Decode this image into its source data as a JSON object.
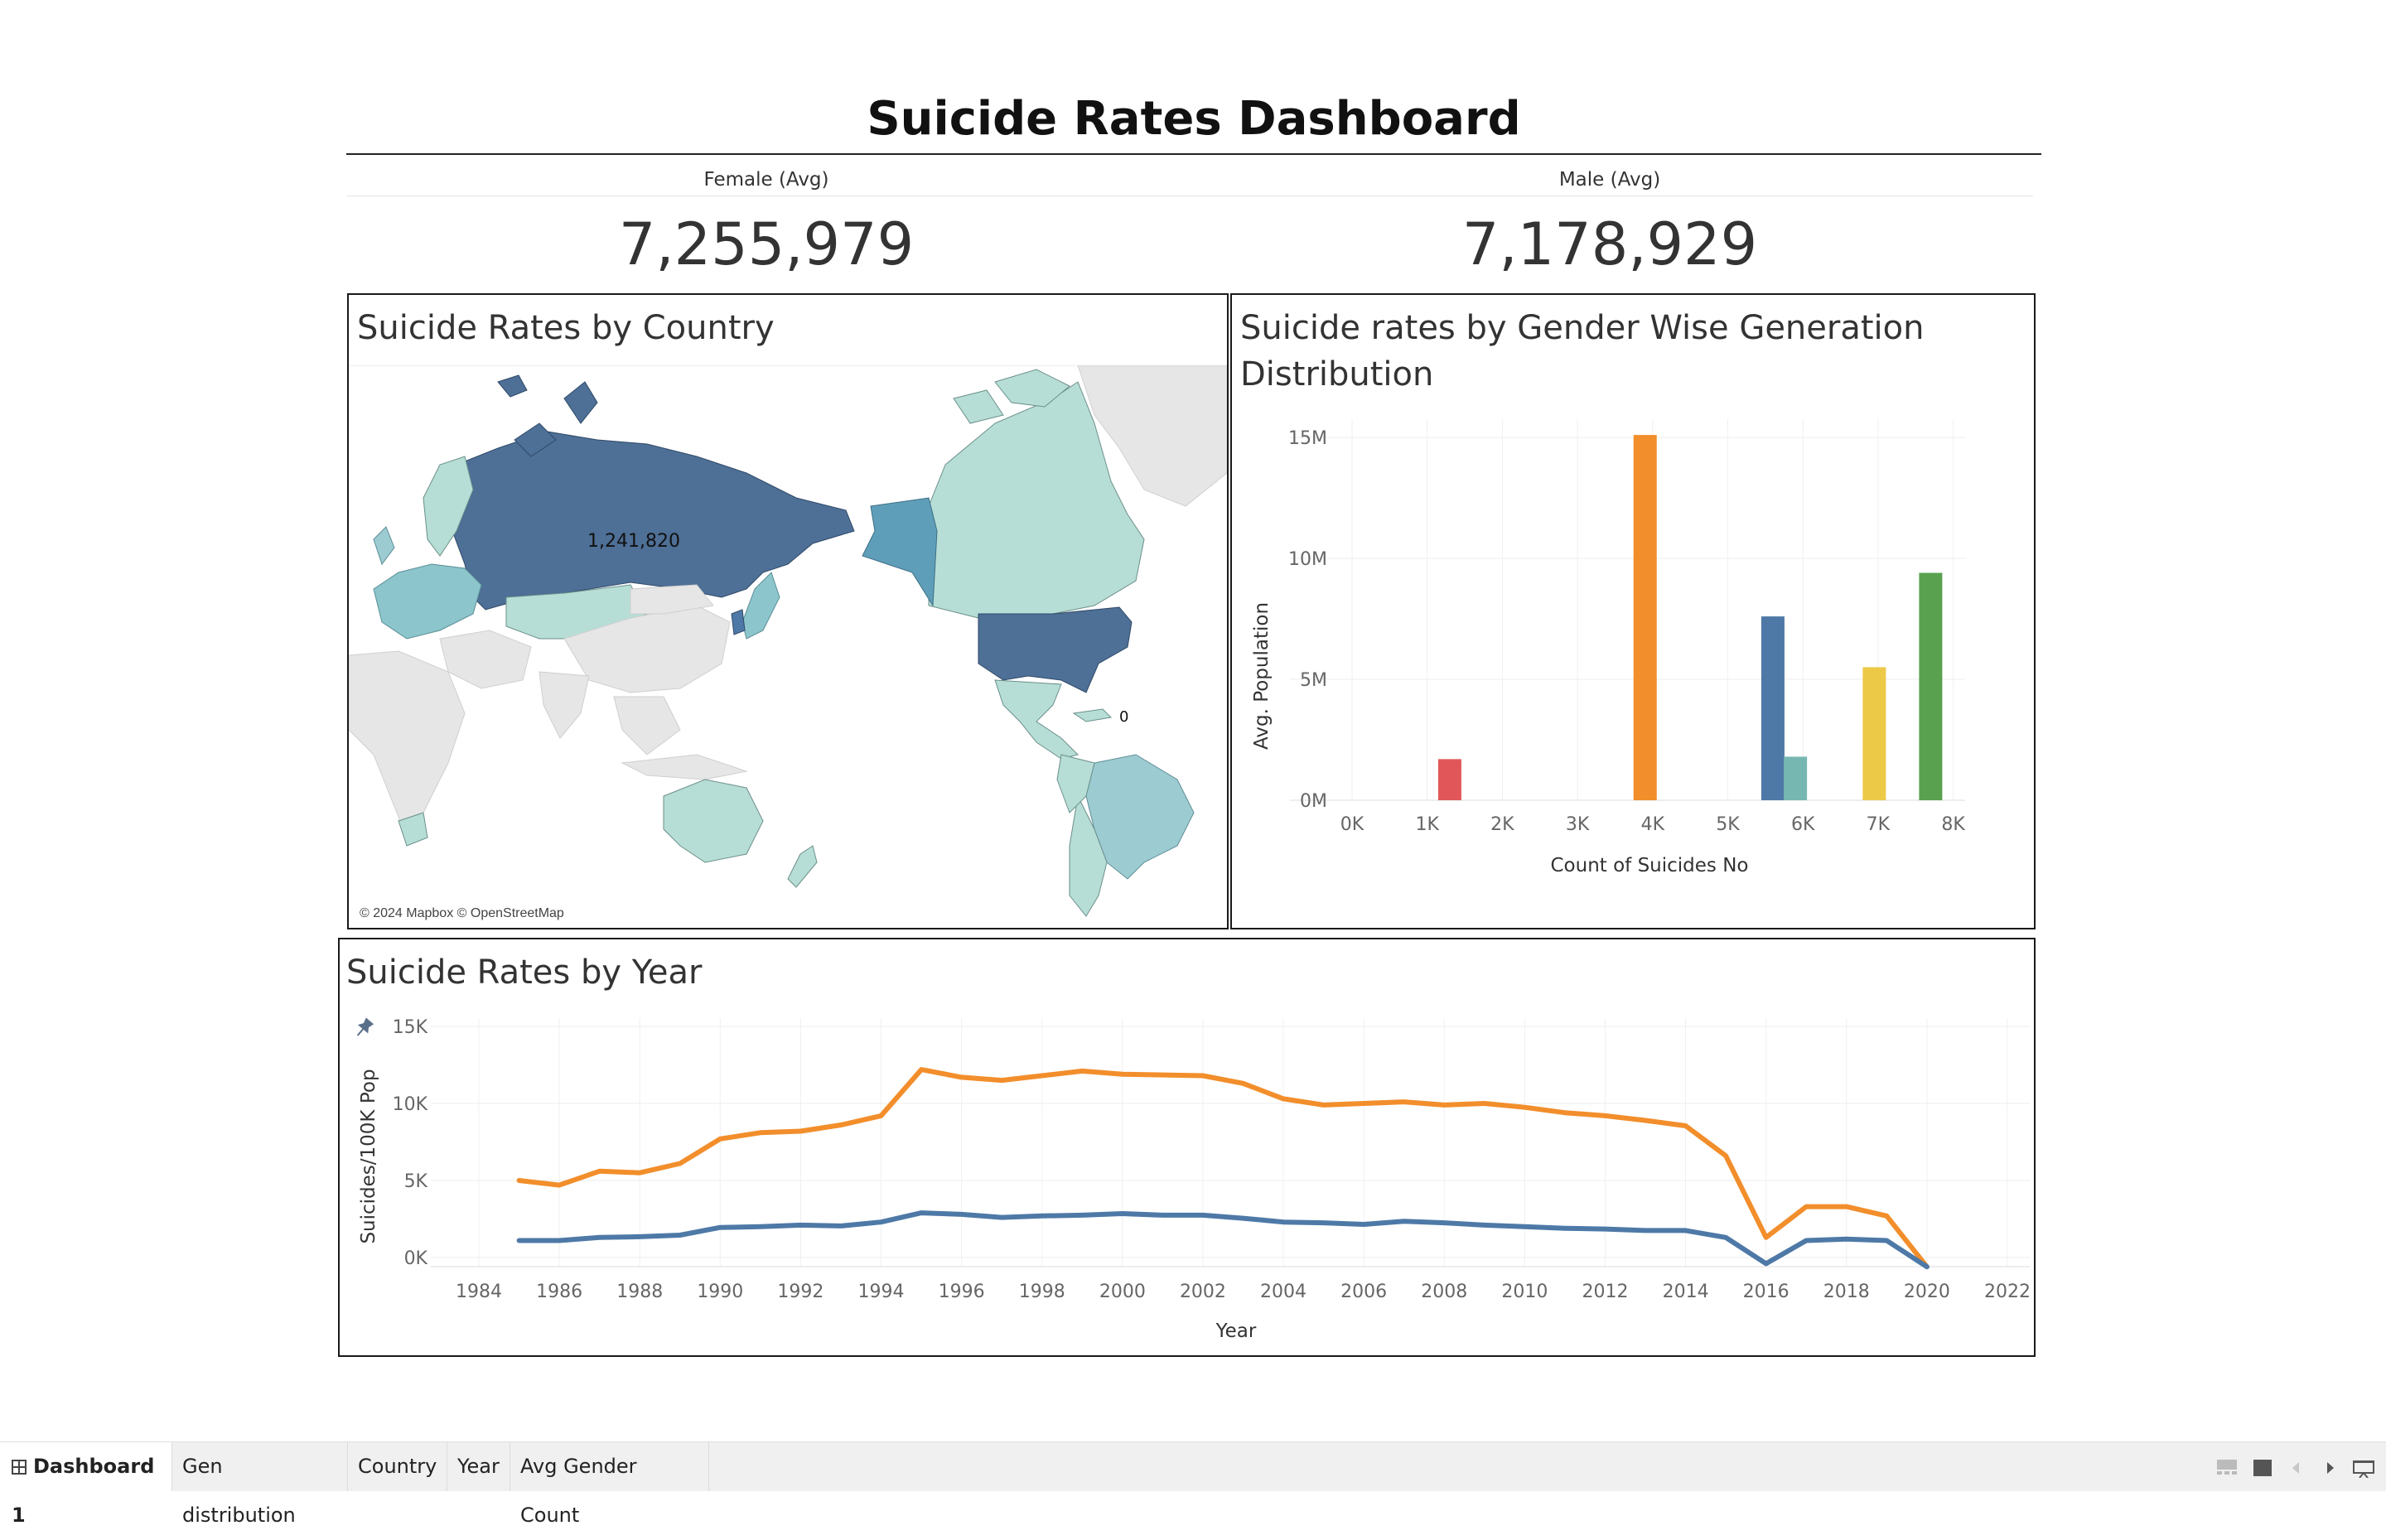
{
  "dashboard": {
    "title": "Suicide Rates Dashboard",
    "female_label": "Female (Avg)",
    "female_value": "7,255,979",
    "male_label": "Male (Avg)",
    "male_value": "7,178,929"
  },
  "map": {
    "title": "Suicide Rates by Country",
    "highlight_label": "1,241,820",
    "credit": "© 2024 Mapbox © OpenStreetMap",
    "colors": {
      "low": "#b7ded6",
      "mid": "#5f9eb8",
      "high": "#4e6f96",
      "nodata": "#e6e6e6",
      "ocean": "#ffffff"
    }
  },
  "tabs": {
    "dashboard1": "Dashboard 1",
    "gen": "Gen distribution",
    "country": "Country",
    "year": "Year",
    "avg": "Avg Gender Count"
  },
  "chart_data": [
    {
      "type": "bar",
      "title": "Suicide rates by Gender Wise Generation Distribution",
      "xlabel": "Count of Suicides No",
      "ylabel": "Avg. Population",
      "x_ticks": [
        "0K",
        "1K",
        "2K",
        "3K",
        "4K",
        "5K",
        "6K",
        "7K",
        "8K"
      ],
      "y_ticks": [
        "0M",
        "5M",
        "10M",
        "15M"
      ],
      "x_range": [
        0,
        8000
      ],
      "ylim": [
        0,
        15000000
      ],
      "grid": true,
      "bars": [
        {
          "x": 1300,
          "value": 1700000,
          "color": "#e15759"
        },
        {
          "x": 3900,
          "value": 15100000,
          "color": "#f28e2b"
        },
        {
          "x": 5600,
          "value": 7600000,
          "color": "#4e79a7"
        },
        {
          "x": 5900,
          "value": 1800000,
          "color": "#76b7b2"
        },
        {
          "x": 6950,
          "value": 5500000,
          "color": "#edc948"
        },
        {
          "x": 7700,
          "value": 9400000,
          "color": "#59a14f"
        }
      ]
    },
    {
      "type": "line",
      "title": "Suicide Rates by Year",
      "xlabel": "Year",
      "ylabel": "Suicides/100K Pop",
      "x_ticks": [
        "1984",
        "1986",
        "1988",
        "1990",
        "1992",
        "1994",
        "1996",
        "1998",
        "2000",
        "2002",
        "2004",
        "2006",
        "2008",
        "2010",
        "2012",
        "2014",
        "2016",
        "2018",
        "2020",
        "2022"
      ],
      "y_ticks": [
        "0K",
        "5K",
        "10K",
        "15K"
      ],
      "x_range": [
        1983,
        2022
      ],
      "ylim": [
        -600,
        15000
      ],
      "grid": true,
      "x": [
        1985,
        1986,
        1987,
        1988,
        1989,
        1990,
        1991,
        1992,
        1993,
        1994,
        1995,
        1996,
        1997,
        1998,
        1999,
        2000,
        2001,
        2002,
        2003,
        2004,
        2005,
        2006,
        2007,
        2008,
        2009,
        2010,
        2011,
        2012,
        2013,
        2014,
        2015,
        2016,
        2017,
        2018,
        2019,
        2020
      ],
      "series": [
        {
          "color": "#f28e2b",
          "values": [
            5000,
            4700,
            5600,
            5500,
            6100,
            7700,
            8100,
            8200,
            8600,
            9200,
            12200,
            11700,
            11500,
            11800,
            12100,
            11900,
            11850,
            11800,
            11300,
            10300,
            9900,
            10000,
            10100,
            9900,
            10000,
            9750,
            9400,
            9200,
            8900,
            8550,
            6600,
            1300,
            3300,
            3300,
            2700,
            -600
          ]
        },
        {
          "color": "#4e79a7",
          "values": [
            1100,
            1100,
            1300,
            1350,
            1450,
            1950,
            2000,
            2100,
            2050,
            2300,
            2900,
            2800,
            2600,
            2700,
            2750,
            2850,
            2750,
            2750,
            2550,
            2300,
            2250,
            2150,
            2350,
            2250,
            2100,
            2000,
            1900,
            1850,
            1750,
            1750,
            1300,
            -400,
            1100,
            1200,
            1100,
            -600
          ]
        }
      ]
    }
  ]
}
